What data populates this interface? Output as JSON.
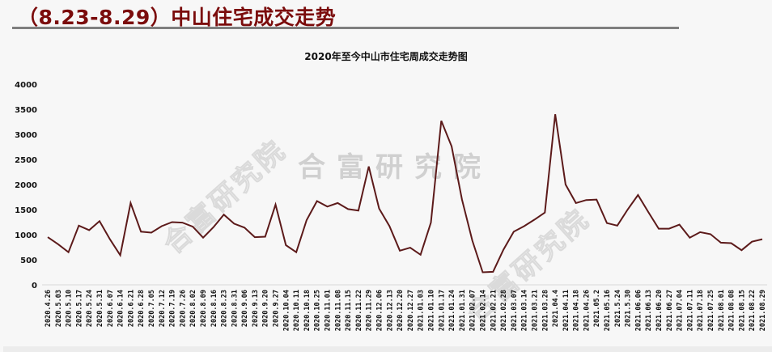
{
  "header": {
    "title": "（8.23-8.29）中山住宅成交走势"
  },
  "watermark": {
    "text": "合富研究院"
  },
  "colors": {
    "title": "#7b0c0c",
    "line": "#5c1a1a",
    "rule": "#7f7f7f",
    "background": "#f7f7f7"
  },
  "chart_data": {
    "type": "line",
    "title": "2020年至今中山市住宅周成交走势图",
    "xlabel": "",
    "ylabel": "",
    "ylim": [
      0,
      4000
    ],
    "yticks": [
      0,
      500,
      1000,
      1500,
      2000,
      2500,
      3000,
      3500,
      4000
    ],
    "grid": false,
    "legend": null,
    "categories": [
      "2020.4.26",
      "2020.5.03",
      "2020.5.10",
      "2020.5.17",
      "2020.5.24",
      "2020.5.31",
      "2020.6.07",
      "2020.6.14",
      "2020.6.21",
      "2020.6.28",
      "2020.7.05",
      "2020.7.12",
      "2020.7.19",
      "2020.7.26",
      "2020.8.02",
      "2020.8.09",
      "2020.8.16",
      "2020.8.23",
      "2020.8.31",
      "2020.9.06",
      "2020.9.13",
      "2020.9.20",
      "2020.9.27",
      "2020.10.04",
      "2020.10.11",
      "2020.10.18",
      "2020.10.25",
      "2020.11.01",
      "2020.11.08",
      "2020.11.15",
      "2020.11.22",
      "2020.11.29",
      "2020.12.06",
      "2020.12.13",
      "2020.12.20",
      "2020.12.27",
      "2021.01.03",
      "2021.01.10",
      "2021.01.17",
      "2021.01.24",
      "2021.01.31",
      "2021.02.07",
      "2021.02.14",
      "2021.02.21",
      "2021.02.28",
      "2021.03.07",
      "2021.03.14",
      "2021.03.21",
      "2021.03.28",
      "2021.04.4",
      "2021.04.11",
      "2021.04.18",
      "2021.04.26",
      "2021.05.2",
      "2021.05.16",
      "2021.5.24",
      "2021.5.30",
      "2021.06.06",
      "2021.06.13",
      "2021.06.20",
      "2021.06.27",
      "2021.07.04",
      "2021.07.11",
      "2021.07.18",
      "2021.07.25",
      "2021.08.01",
      "2021.08.08",
      "2021.08.15",
      "2021.08.22",
      "2021.08.29"
    ],
    "series": [
      {
        "name": "住宅周成交",
        "values": [
          950,
          810,
          650,
          1180,
          1090,
          1270,
          910,
          590,
          1630,
          1060,
          1040,
          1170,
          1250,
          1240,
          1160,
          940,
          1150,
          1400,
          1220,
          1140,
          950,
          960,
          1600,
          790,
          650,
          1290,
          1670,
          1560,
          1630,
          1510,
          1480,
          2360,
          1520,
          1170,
          680,
          740,
          600,
          1240,
          3270,
          2760,
          1700,
          880,
          250,
          260,
          700,
          1060,
          1170,
          1300,
          1440,
          3400,
          2000,
          1630,
          1690,
          1700,
          1230,
          1180,
          1500,
          1790,
          1450,
          1120,
          1120,
          1200,
          940,
          1050,
          1010,
          840,
          830,
          690,
          860,
          910
        ]
      }
    ]
  }
}
